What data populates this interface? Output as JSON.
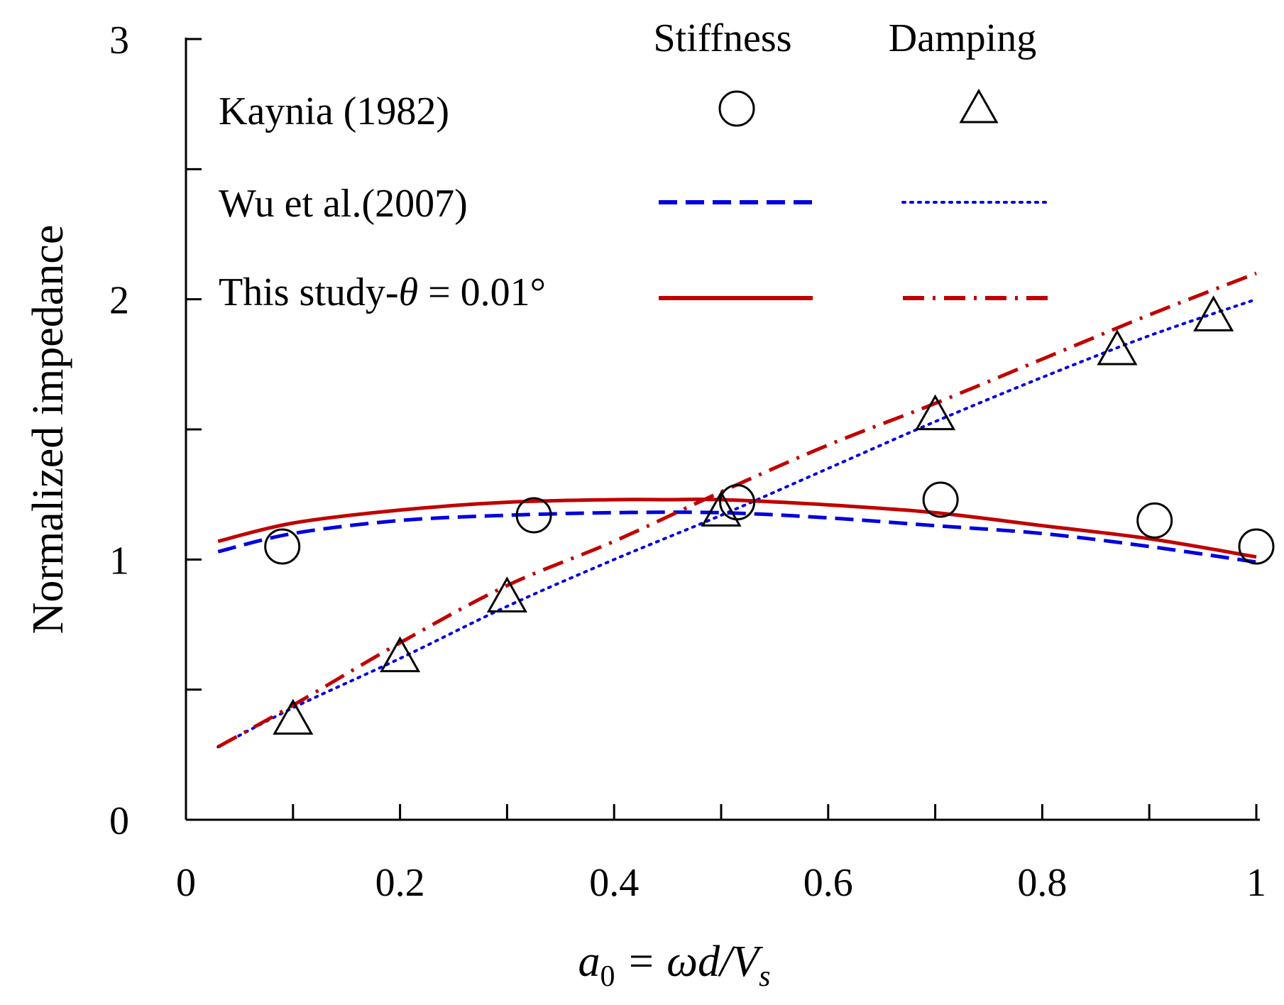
{
  "chart_data": {
    "type": "line",
    "xlabel": {
      "base": "a",
      "sub": "0",
      "rest": " = ωd/V",
      "sub2": "s"
    },
    "ylabel": "Normalized  impedance",
    "xlim": [
      0,
      1
    ],
    "ylim": [
      0,
      3
    ],
    "xticks": [
      0,
      0.2,
      0.4,
      0.6,
      0.8,
      1
    ],
    "xtick_labels": [
      "0",
      "0.2",
      "0.4",
      "0.6",
      "0.8",
      "1"
    ],
    "yticks": [
      0,
      1,
      2,
      3
    ],
    "ytick_labels": [
      "0",
      "1",
      "2",
      "3"
    ],
    "grid": false,
    "legend": {
      "placement": "top",
      "col_headers": [
        "Stiffness",
        "Damping"
      ],
      "rows": [
        {
          "label": "Kaynia (1982)",
          "stiffness_style": "circle-marker",
          "damping_style": "triangle-marker"
        },
        {
          "label": "Wu et al.(2007)",
          "stiffness_style": "dashed",
          "damping_style": "dotted"
        },
        {
          "label_prefix": "This study-",
          "label_symbol": "θ",
          "label_suffix": " = 0.01°",
          "stiffness_style": "solid",
          "damping_style": "dash-dot"
        }
      ]
    },
    "colors": {
      "wu": "#0000e0",
      "this_study": "#c00000",
      "kaynia": "#000000"
    },
    "series": [
      {
        "name": "Kaynia (1982) stiffness",
        "style": "circle-marker",
        "x": [
          0.09,
          0.325,
          0.515,
          0.705,
          0.905,
          1.0
        ],
        "y": [
          1.05,
          1.17,
          1.22,
          1.23,
          1.15,
          1.05
        ]
      },
      {
        "name": "Kaynia (1982) damping",
        "style": "triangle-marker",
        "x": [
          0.1,
          0.2,
          0.3,
          0.5,
          0.7,
          0.87,
          0.96
        ],
        "y": [
          0.38,
          0.62,
          0.85,
          1.18,
          1.55,
          1.8,
          1.93
        ]
      },
      {
        "name": "Wu et al.(2007) stiffness",
        "style": "dashed",
        "x": [
          0.03,
          0.1,
          0.2,
          0.3,
          0.4,
          0.5,
          0.6,
          0.7,
          0.8,
          0.9,
          1.0
        ],
        "y": [
          1.03,
          1.1,
          1.15,
          1.17,
          1.18,
          1.18,
          1.16,
          1.13,
          1.1,
          1.05,
          0.99
        ]
      },
      {
        "name": "Wu et al.(2007) damping",
        "style": "dotted",
        "x": [
          0.03,
          0.1,
          0.2,
          0.3,
          0.4,
          0.5,
          0.6,
          0.7,
          0.8,
          0.9,
          1.0
        ],
        "y": [
          0.28,
          0.43,
          0.62,
          0.82,
          1.0,
          1.17,
          1.35,
          1.53,
          1.7,
          1.86,
          2.0
        ]
      },
      {
        "name": "This study stiffness",
        "style": "solid",
        "x": [
          0.03,
          0.1,
          0.2,
          0.3,
          0.4,
          0.45,
          0.5,
          0.6,
          0.7,
          0.8,
          0.9,
          1.0
        ],
        "y": [
          1.07,
          1.14,
          1.19,
          1.22,
          1.23,
          1.23,
          1.23,
          1.21,
          1.18,
          1.13,
          1.08,
          1.01
        ]
      },
      {
        "name": "This study damping",
        "style": "dash-dot",
        "x": [
          0.03,
          0.1,
          0.2,
          0.3,
          0.4,
          0.5,
          0.6,
          0.7,
          0.8,
          0.9,
          1.0
        ],
        "y": [
          0.28,
          0.44,
          0.68,
          0.9,
          1.07,
          1.26,
          1.44,
          1.6,
          1.77,
          1.94,
          2.1
        ]
      }
    ]
  }
}
